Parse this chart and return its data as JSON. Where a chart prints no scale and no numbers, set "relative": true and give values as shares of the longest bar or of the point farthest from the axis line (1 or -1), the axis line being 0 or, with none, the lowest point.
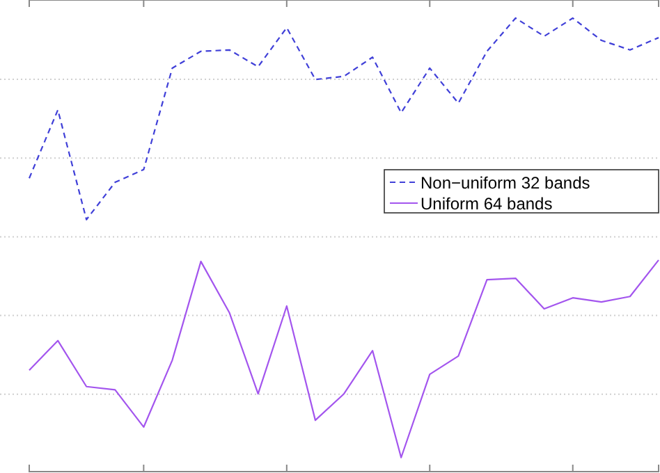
{
  "chart_data": {
    "type": "line",
    "relative": true,
    "categories": [
      null,
      null,
      null,
      null,
      null,
      null,
      null,
      null,
      null,
      null,
      null,
      null,
      null,
      null,
      null,
      null,
      null,
      null,
      null,
      null,
      null,
      null,
      null
    ],
    "grid": "y",
    "legend": "right",
    "marker": "none",
    "series": [
      {
        "name": "Non−uniform 32 bands",
        "color": "#4040d8",
        "line_style": "dashed",
        "values": [
          0.648,
          0.798,
          0.557,
          0.639,
          0.667,
          0.89,
          0.927,
          0.93,
          0.893,
          0.979,
          0.865,
          0.872,
          0.914,
          0.792,
          0.89,
          0.813,
          0.927,
          1,
          0.96,
          1,
          0.951,
          0.93,
          0.957
        ]
      },
      {
        "name": "Uniform 64 bands",
        "color": "#a355ee",
        "line_style": "solid",
        "values": [
          0.226,
          0.291,
          0.19,
          0.183,
          0.101,
          0.248,
          0.465,
          0.352,
          0.174,
          0.367,
          0.116,
          0.174,
          0.269,
          0.034,
          0.217,
          0.257,
          0.425,
          0.428,
          0.361,
          0.385,
          0.376,
          0.388,
          0.468
        ]
      }
    ]
  }
}
